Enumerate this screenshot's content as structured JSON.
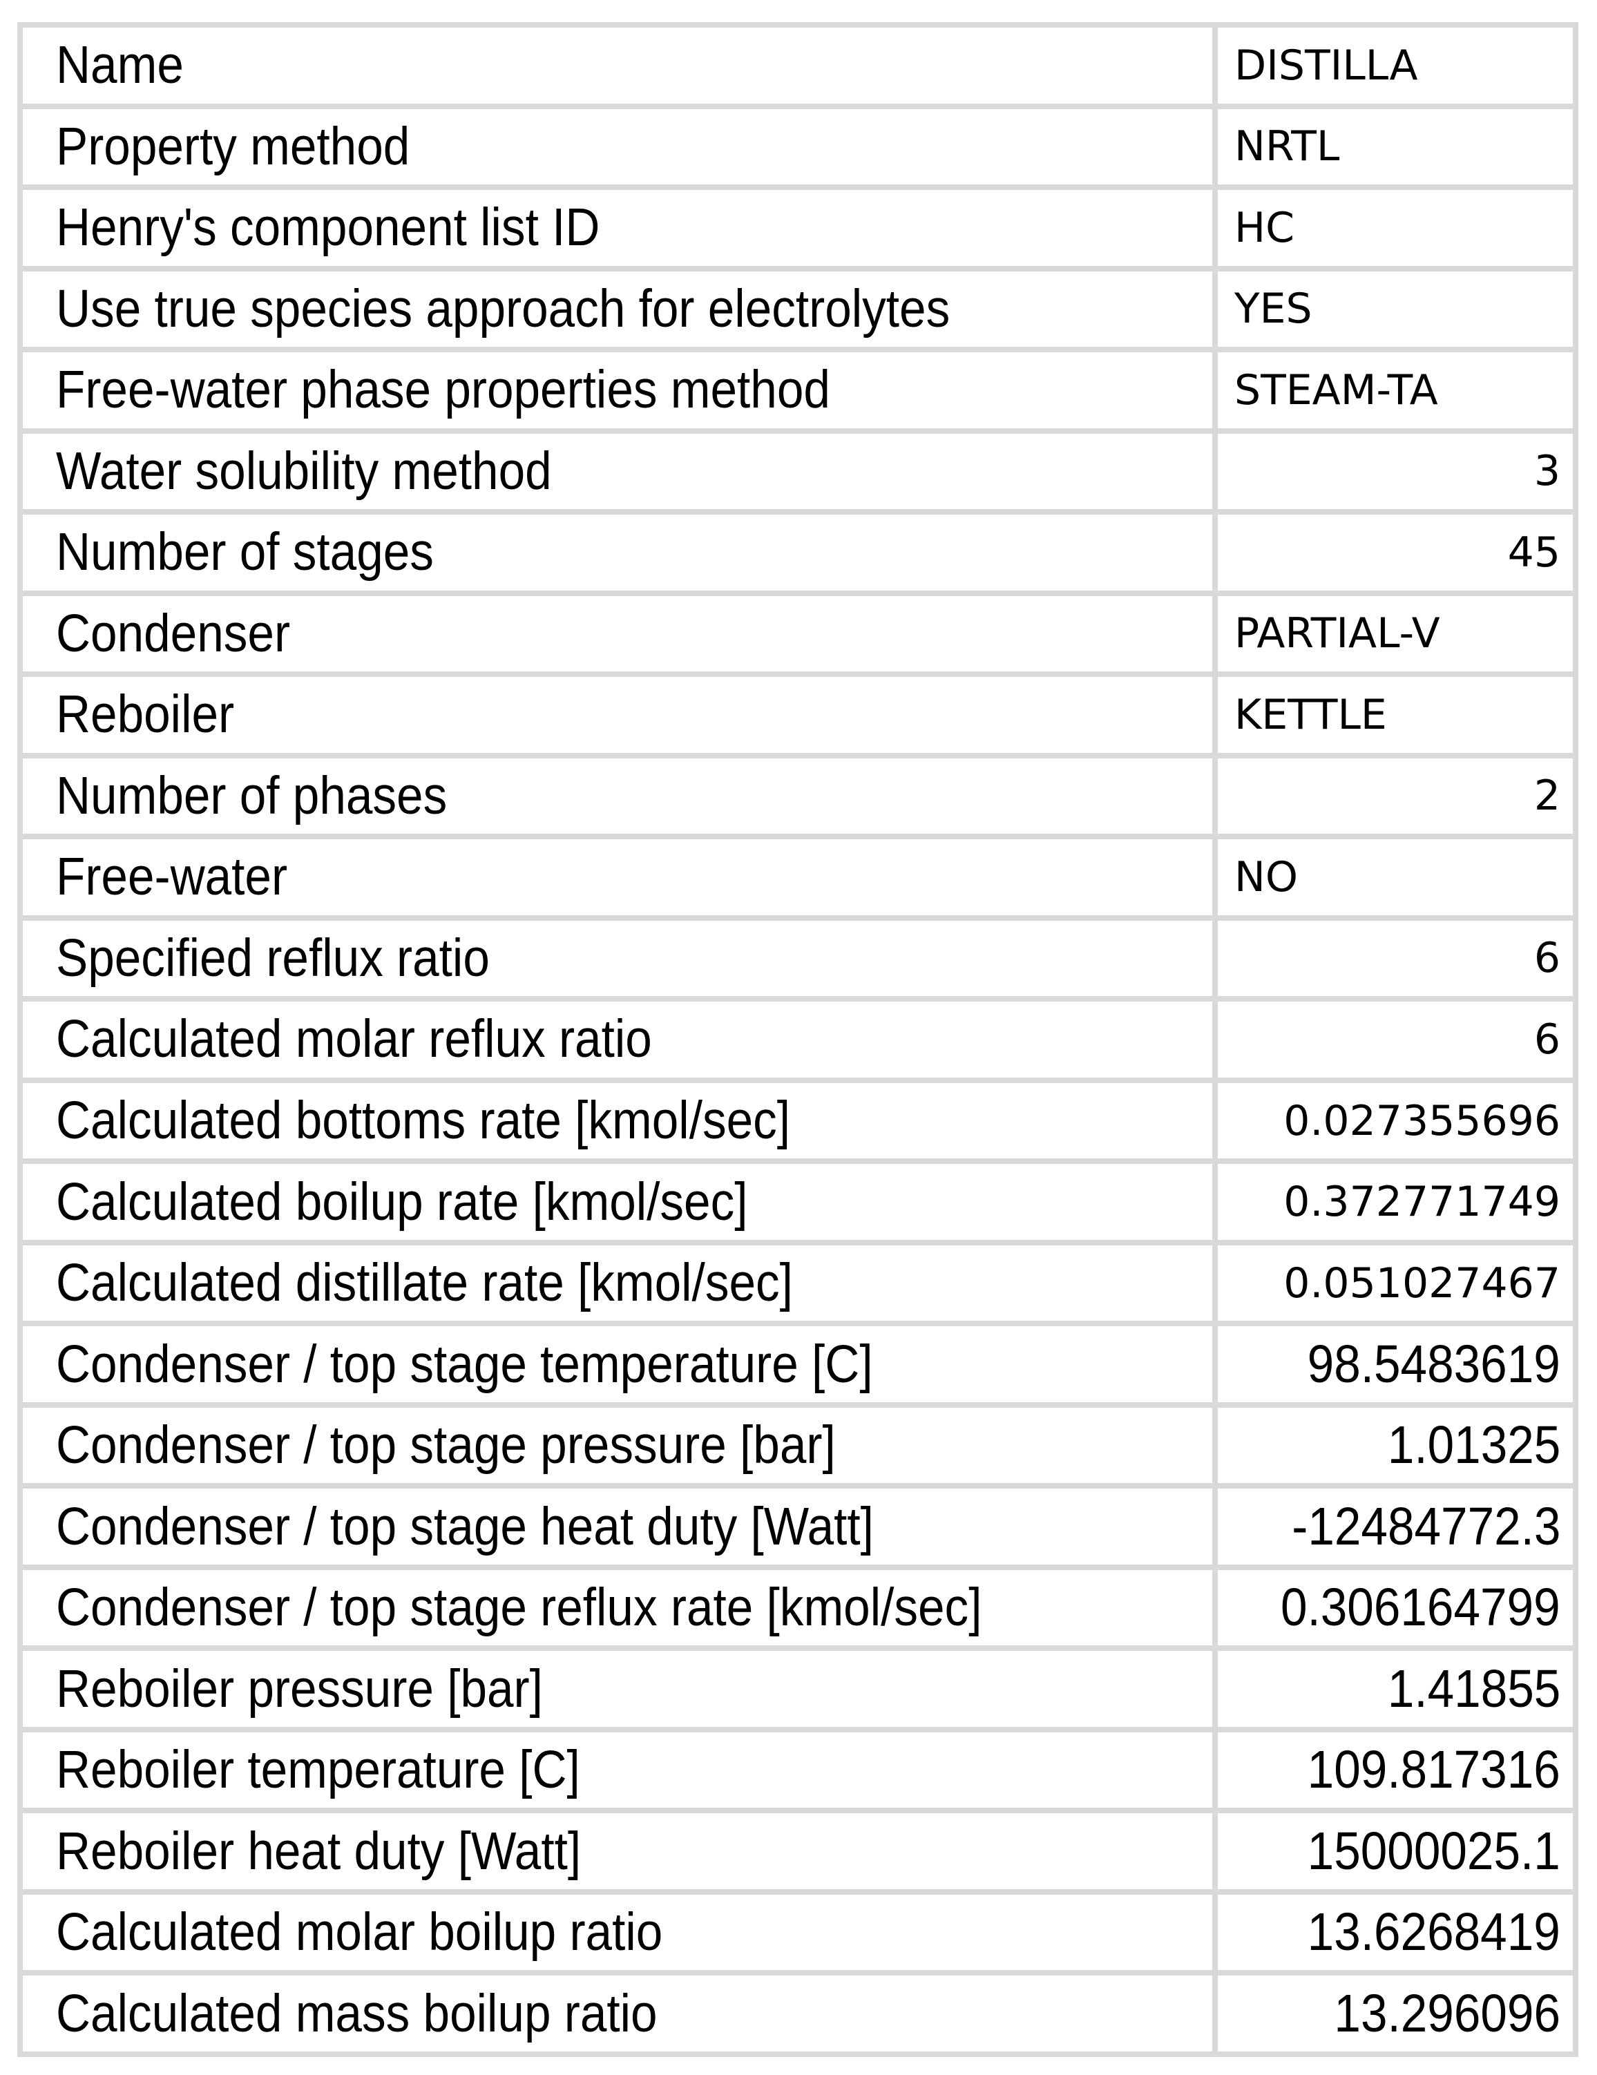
{
  "table": {
    "colors": {
      "gridline": "#d9d9d9",
      "text": "#000000",
      "background": "#ffffff"
    },
    "rows": [
      {
        "label": "Name",
        "value": "DISTILLA"
      },
      {
        "label": "Property method",
        "value": "NRTL"
      },
      {
        "label": "Henry's component list ID",
        "value": "HC"
      },
      {
        "label": "Use true species approach for electrolytes",
        "value": "YES"
      },
      {
        "label": "Free-water phase properties method",
        "value": "STEAM-TA"
      },
      {
        "label": "Water solubility method",
        "value": "3"
      },
      {
        "label": "Number of stages",
        "value": "45"
      },
      {
        "label": "Condenser",
        "value": "PARTIAL-V"
      },
      {
        "label": "Reboiler",
        "value": "KETTLE"
      },
      {
        "label": "Number of phases",
        "value": "2"
      },
      {
        "label": "Free-water",
        "value": "NO"
      },
      {
        "label": "Specified reflux ratio",
        "value": "6"
      },
      {
        "label": "Calculated molar reflux ratio",
        "value": "6"
      },
      {
        "label": "Calculated bottoms rate [kmol/sec]",
        "value": "0.027355696"
      },
      {
        "label": "Calculated boilup rate [kmol/sec]",
        "value": "0.372771749"
      },
      {
        "label": "Calculated distillate rate [kmol/sec]",
        "value": "0.051027467"
      },
      {
        "label": "Condenser / top stage temperature [C]",
        "value": "98.5483619"
      },
      {
        "label": "Condenser / top stage pressure [bar]",
        "value": "1.01325"
      },
      {
        "label": "Condenser / top stage heat duty [Watt]",
        "value": "-12484772.3"
      },
      {
        "label": "Condenser / top stage reflux rate [kmol/sec]",
        "value": "0.306164799"
      },
      {
        "label": "Reboiler pressure [bar]",
        "value": "1.41855"
      },
      {
        "label": "Reboiler temperature [C]",
        "value": "109.817316"
      },
      {
        "label": "Reboiler heat duty [Watt]",
        "value": "15000025.1"
      },
      {
        "label": "Calculated molar boilup ratio",
        "value": "13.6268419"
      },
      {
        "label": "Calculated mass boilup ratio",
        "value": "13.296096"
      }
    ]
  }
}
